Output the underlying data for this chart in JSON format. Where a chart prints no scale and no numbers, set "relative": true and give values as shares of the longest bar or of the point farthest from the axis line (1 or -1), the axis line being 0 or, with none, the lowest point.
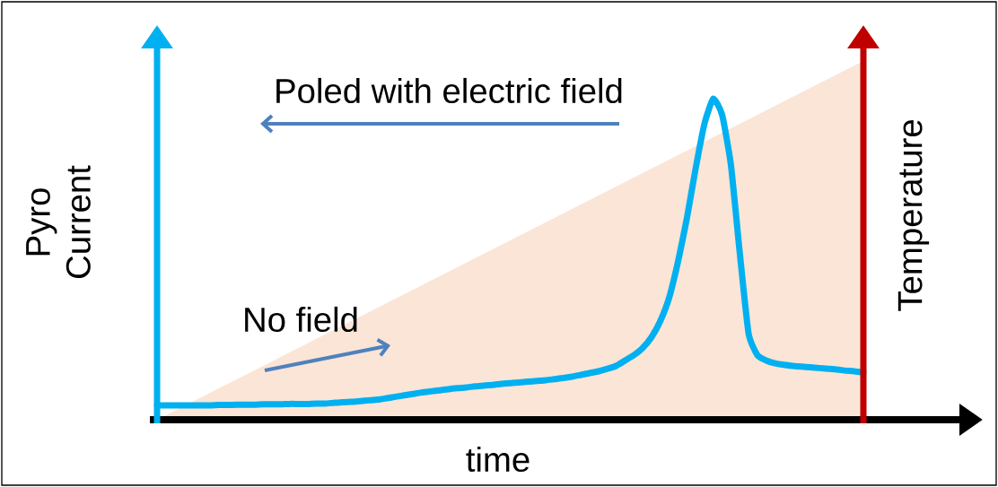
{
  "chart_data": {
    "type": "line",
    "relative": true,
    "xlabel": "time",
    "ylabel": "Pyro Current",
    "y2label": "Temperature",
    "annotations": [
      "Poled with electric field",
      "No field"
    ],
    "categories": [
      null,
      null,
      null,
      null,
      null,
      null,
      null,
      null,
      null,
      null,
      null,
      null,
      null,
      null,
      null,
      null,
      null,
      null,
      null,
      null,
      null,
      null,
      null,
      null,
      null,
      null,
      null,
      null,
      null,
      null,
      null,
      null,
      null,
      null,
      null,
      null,
      null,
      null,
      null,
      null,
      null,
      null,
      null,
      null,
      null,
      null,
      null,
      null,
      null,
      null,
      null,
      null,
      null,
      null,
      null,
      null,
      null,
      null,
      null,
      null,
      null,
      null,
      null,
      null,
      null,
      null,
      null,
      null,
      null,
      null,
      null,
      null,
      null,
      null,
      null,
      null,
      null,
      null,
      null,
      null,
      null
    ],
    "series": [
      {
        "type": "area",
        "color": "#fbe5d6",
        "values": [
          0,
          0.0125,
          0.025,
          0.0375,
          0.05,
          0.0625,
          0.075,
          0.0875,
          0.1,
          0.1125,
          0.125,
          0.1375,
          0.15,
          0.1625,
          0.175,
          0.1875,
          0.2,
          0.2125,
          0.225,
          0.2375,
          0.25,
          0.2625,
          0.275,
          0.2875,
          0.3,
          0.3125,
          0.325,
          0.3375,
          0.35,
          0.3625,
          0.375,
          0.3875,
          0.4,
          0.4125,
          0.425,
          0.4375,
          0.45,
          0.4625,
          0.475,
          0.4875,
          0.5,
          0.5125,
          0.525,
          0.5375,
          0.55,
          0.5625,
          0.575,
          0.5875,
          0.6,
          0.6125,
          0.625,
          0.6375,
          0.65,
          0.6625,
          0.675,
          0.6875,
          0.7,
          0.7125,
          0.725,
          0.7375,
          0.75,
          0.7625,
          0.775,
          0.7875,
          0.8,
          0.8125,
          0.825,
          0.8375,
          0.85,
          0.8625,
          0.875,
          0.8875,
          0.9,
          0.9125,
          0.925,
          0.9375,
          0.95,
          0.9625,
          0.975,
          0.9875,
          1
        ]
      },
      {
        "color": "#00b0f0",
        "values": [
          0.04,
          0.04,
          0.04,
          0.04,
          0.04,
          0.04,
          0.04,
          0.041,
          0.041,
          0.042,
          0.042,
          0.042,
          0.043,
          0.043,
          0.043,
          0.044,
          0.044,
          0.044,
          0.045,
          0.045,
          0.047,
          0.049,
          0.05,
          0.052,
          0.054,
          0.056,
          0.06,
          0.064,
          0.068,
          0.072,
          0.076,
          0.079,
          0.082,
          0.085,
          0.088,
          0.09,
          0.093,
          0.095,
          0.097,
          0.1,
          0.102,
          0.104,
          0.106,
          0.108,
          0.11,
          0.113,
          0.116,
          0.12,
          0.125,
          0.13,
          0.135,
          0.142,
          0.15,
          0.165,
          0.18,
          0.2,
          0.23,
          0.275,
          0.34,
          0.44,
          0.56,
          0.7,
          0.825,
          0.895,
          0.85,
          0.71,
          0.465,
          0.24,
          0.18,
          0.165,
          0.157,
          0.153,
          0.15,
          0.148,
          0.146,
          0.144,
          0.142,
          0.14,
          0.137,
          0.135,
          0.132
        ]
      }
    ]
  }
}
